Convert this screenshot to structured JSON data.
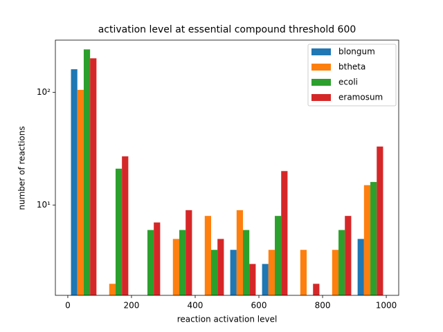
{
  "chart_data": {
    "type": "histogram",
    "title": "activation level at essential compound threshold 600",
    "x_label": "reaction activation level",
    "y_label": "number of reactions",
    "bins": [
      0,
      100,
      200,
      300,
      400,
      500,
      600,
      700,
      800,
      900,
      1000
    ],
    "series": [
      {
        "name": "blongum",
        "color": "#1f77b4",
        "values": [
          160,
          0,
          0,
          0,
          0,
          4,
          3,
          0,
          0,
          5
        ]
      },
      {
        "name": "btheta",
        "color": "#ff7f0e",
        "values": [
          105,
          2,
          0,
          5,
          8,
          9,
          4,
          4,
          4,
          15
        ]
      },
      {
        "name": "ecoli",
        "color": "#2ca02c",
        "values": [
          240,
          21,
          6,
          6,
          4,
          6,
          8,
          0,
          6,
          16
        ]
      },
      {
        "name": "eramosum",
        "color": "#d62728",
        "values": [
          200,
          27,
          7,
          9,
          5,
          3,
          20,
          2,
          8,
          33
        ]
      }
    ],
    "xlim": [
      -39,
      1039
    ],
    "xticks": [
      0,
      200,
      400,
      600,
      800,
      1000
    ],
    "ylim": [
      1.58,
      290
    ],
    "yticks": [
      {
        "value": 10,
        "label": "10¹"
      },
      {
        "value": 100,
        "label": "10²"
      }
    ],
    "log_y": true,
    "legend": "upper right"
  }
}
